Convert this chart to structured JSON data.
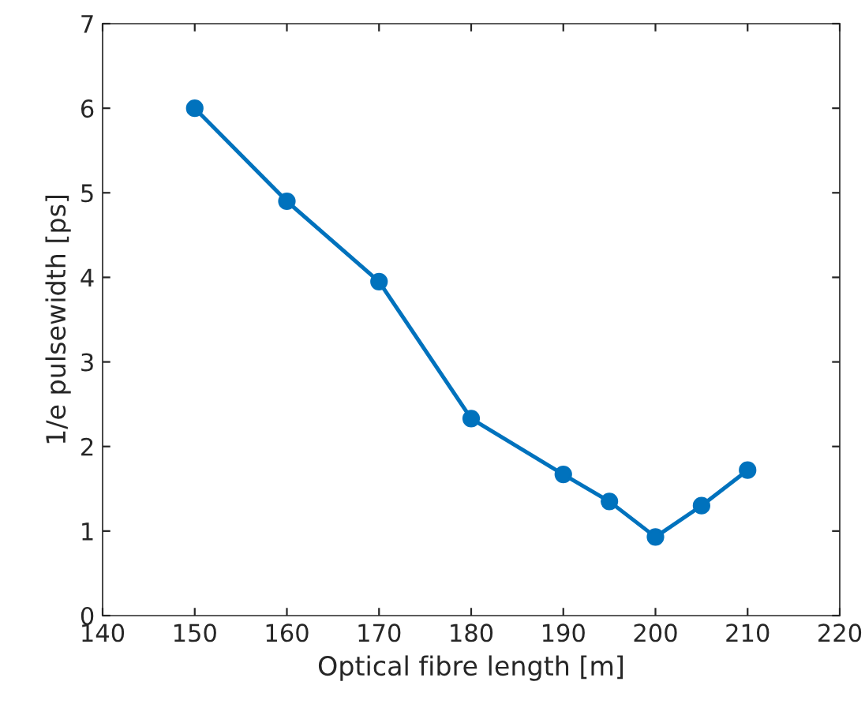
{
  "chart_data": {
    "type": "line",
    "xlabel": "Optical fibre length [m]",
    "ylabel": "1/e pulsewidth [ps]",
    "x": [
      150,
      160,
      170,
      180,
      190,
      195,
      200,
      205,
      210
    ],
    "series": [
      {
        "color": "#0072bd",
        "values": [
          6.0,
          4.9,
          3.95,
          2.33,
          1.67,
          1.35,
          0.93,
          1.3,
          1.72
        ]
      }
    ],
    "xlim": [
      140,
      220
    ],
    "xticks": [
      140,
      150,
      160,
      170,
      180,
      190,
      200,
      210,
      220
    ],
    "ylim": [
      0,
      7
    ],
    "yticks": [
      0,
      1,
      2,
      3,
      4,
      5,
      6,
      7
    ],
    "grid": false,
    "legend": false,
    "marker": "circle",
    "line_style": "solid"
  }
}
